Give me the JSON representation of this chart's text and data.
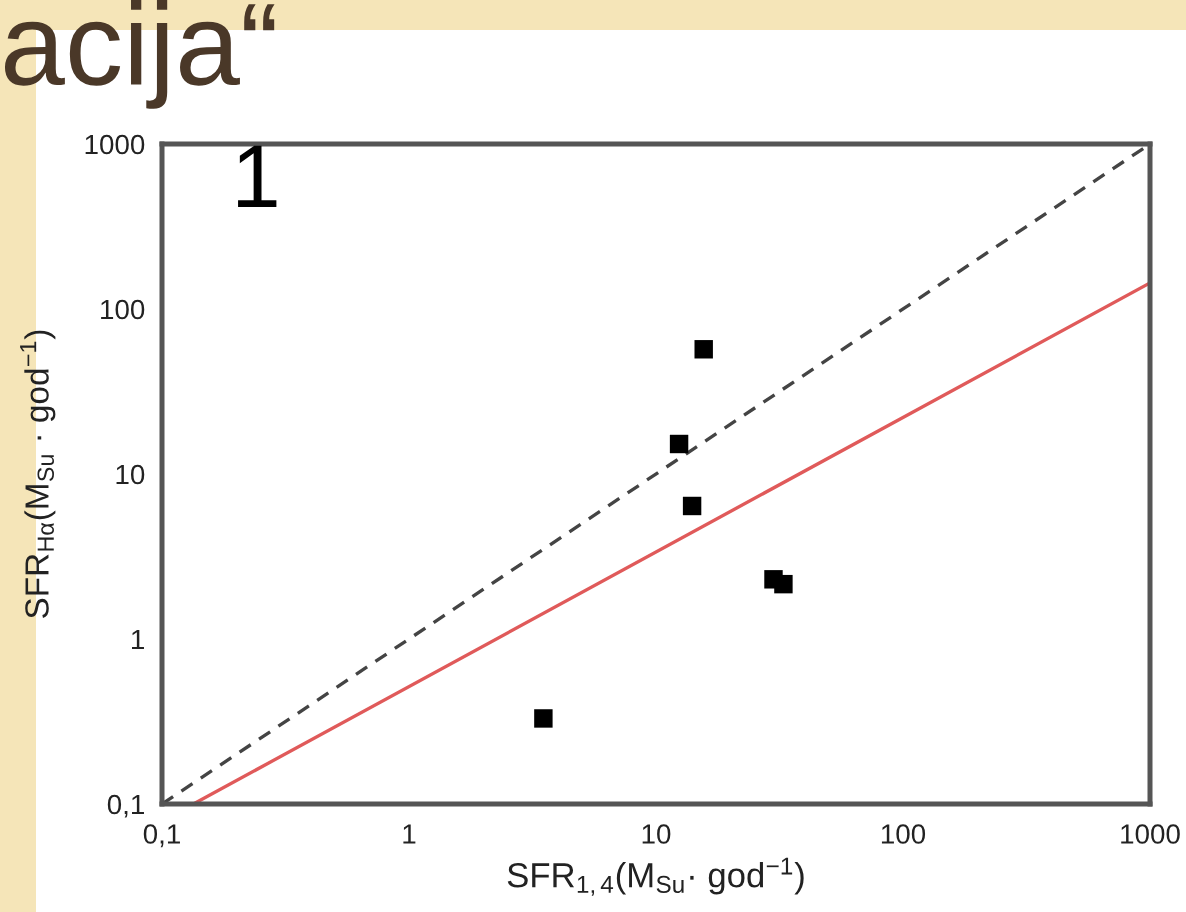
{
  "chart_data": {
    "type": "scatter",
    "title": "acija“",
    "annotations": [
      "1"
    ],
    "xlabel": "SFR$_{1,4}$(M$_{Su}$· god$^{−1}$)",
    "ylabel": "SFR$_{Hα}$(M$_{Su}$ · god$^{−1}$)",
    "log": "xy",
    "xlim": [
      0.1,
      1000
    ],
    "ylim": [
      0.1,
      1000
    ],
    "xticks": [
      {
        "value": 0.1,
        "label": "0,1"
      },
      1,
      10,
      100,
      1000
    ],
    "yticks": [
      {
        "value": 0.1,
        "label": "0,1"
      },
      1,
      10,
      100,
      1000
    ],
    "series": [
      {
        "color": "#000000",
        "marker": "square",
        "x": [
          3.5,
          15.6,
          12.4,
          14.0,
          29.9,
          32.8
        ],
        "values": [
          0.33,
          57,
          15.2,
          6.4,
          2.3,
          2.15
        ]
      },
      {
        "type": "line",
        "color": "#444444",
        "line_style": "dashed",
        "x": [
          0.1,
          1000
        ],
        "values": [
          0.1,
          1000
        ]
      },
      {
        "type": "line",
        "color": "#e05a5a",
        "line_style": "solid",
        "x": [
          0.134,
          1000
        ],
        "values": [
          0.1,
          144
        ]
      }
    ]
  }
}
